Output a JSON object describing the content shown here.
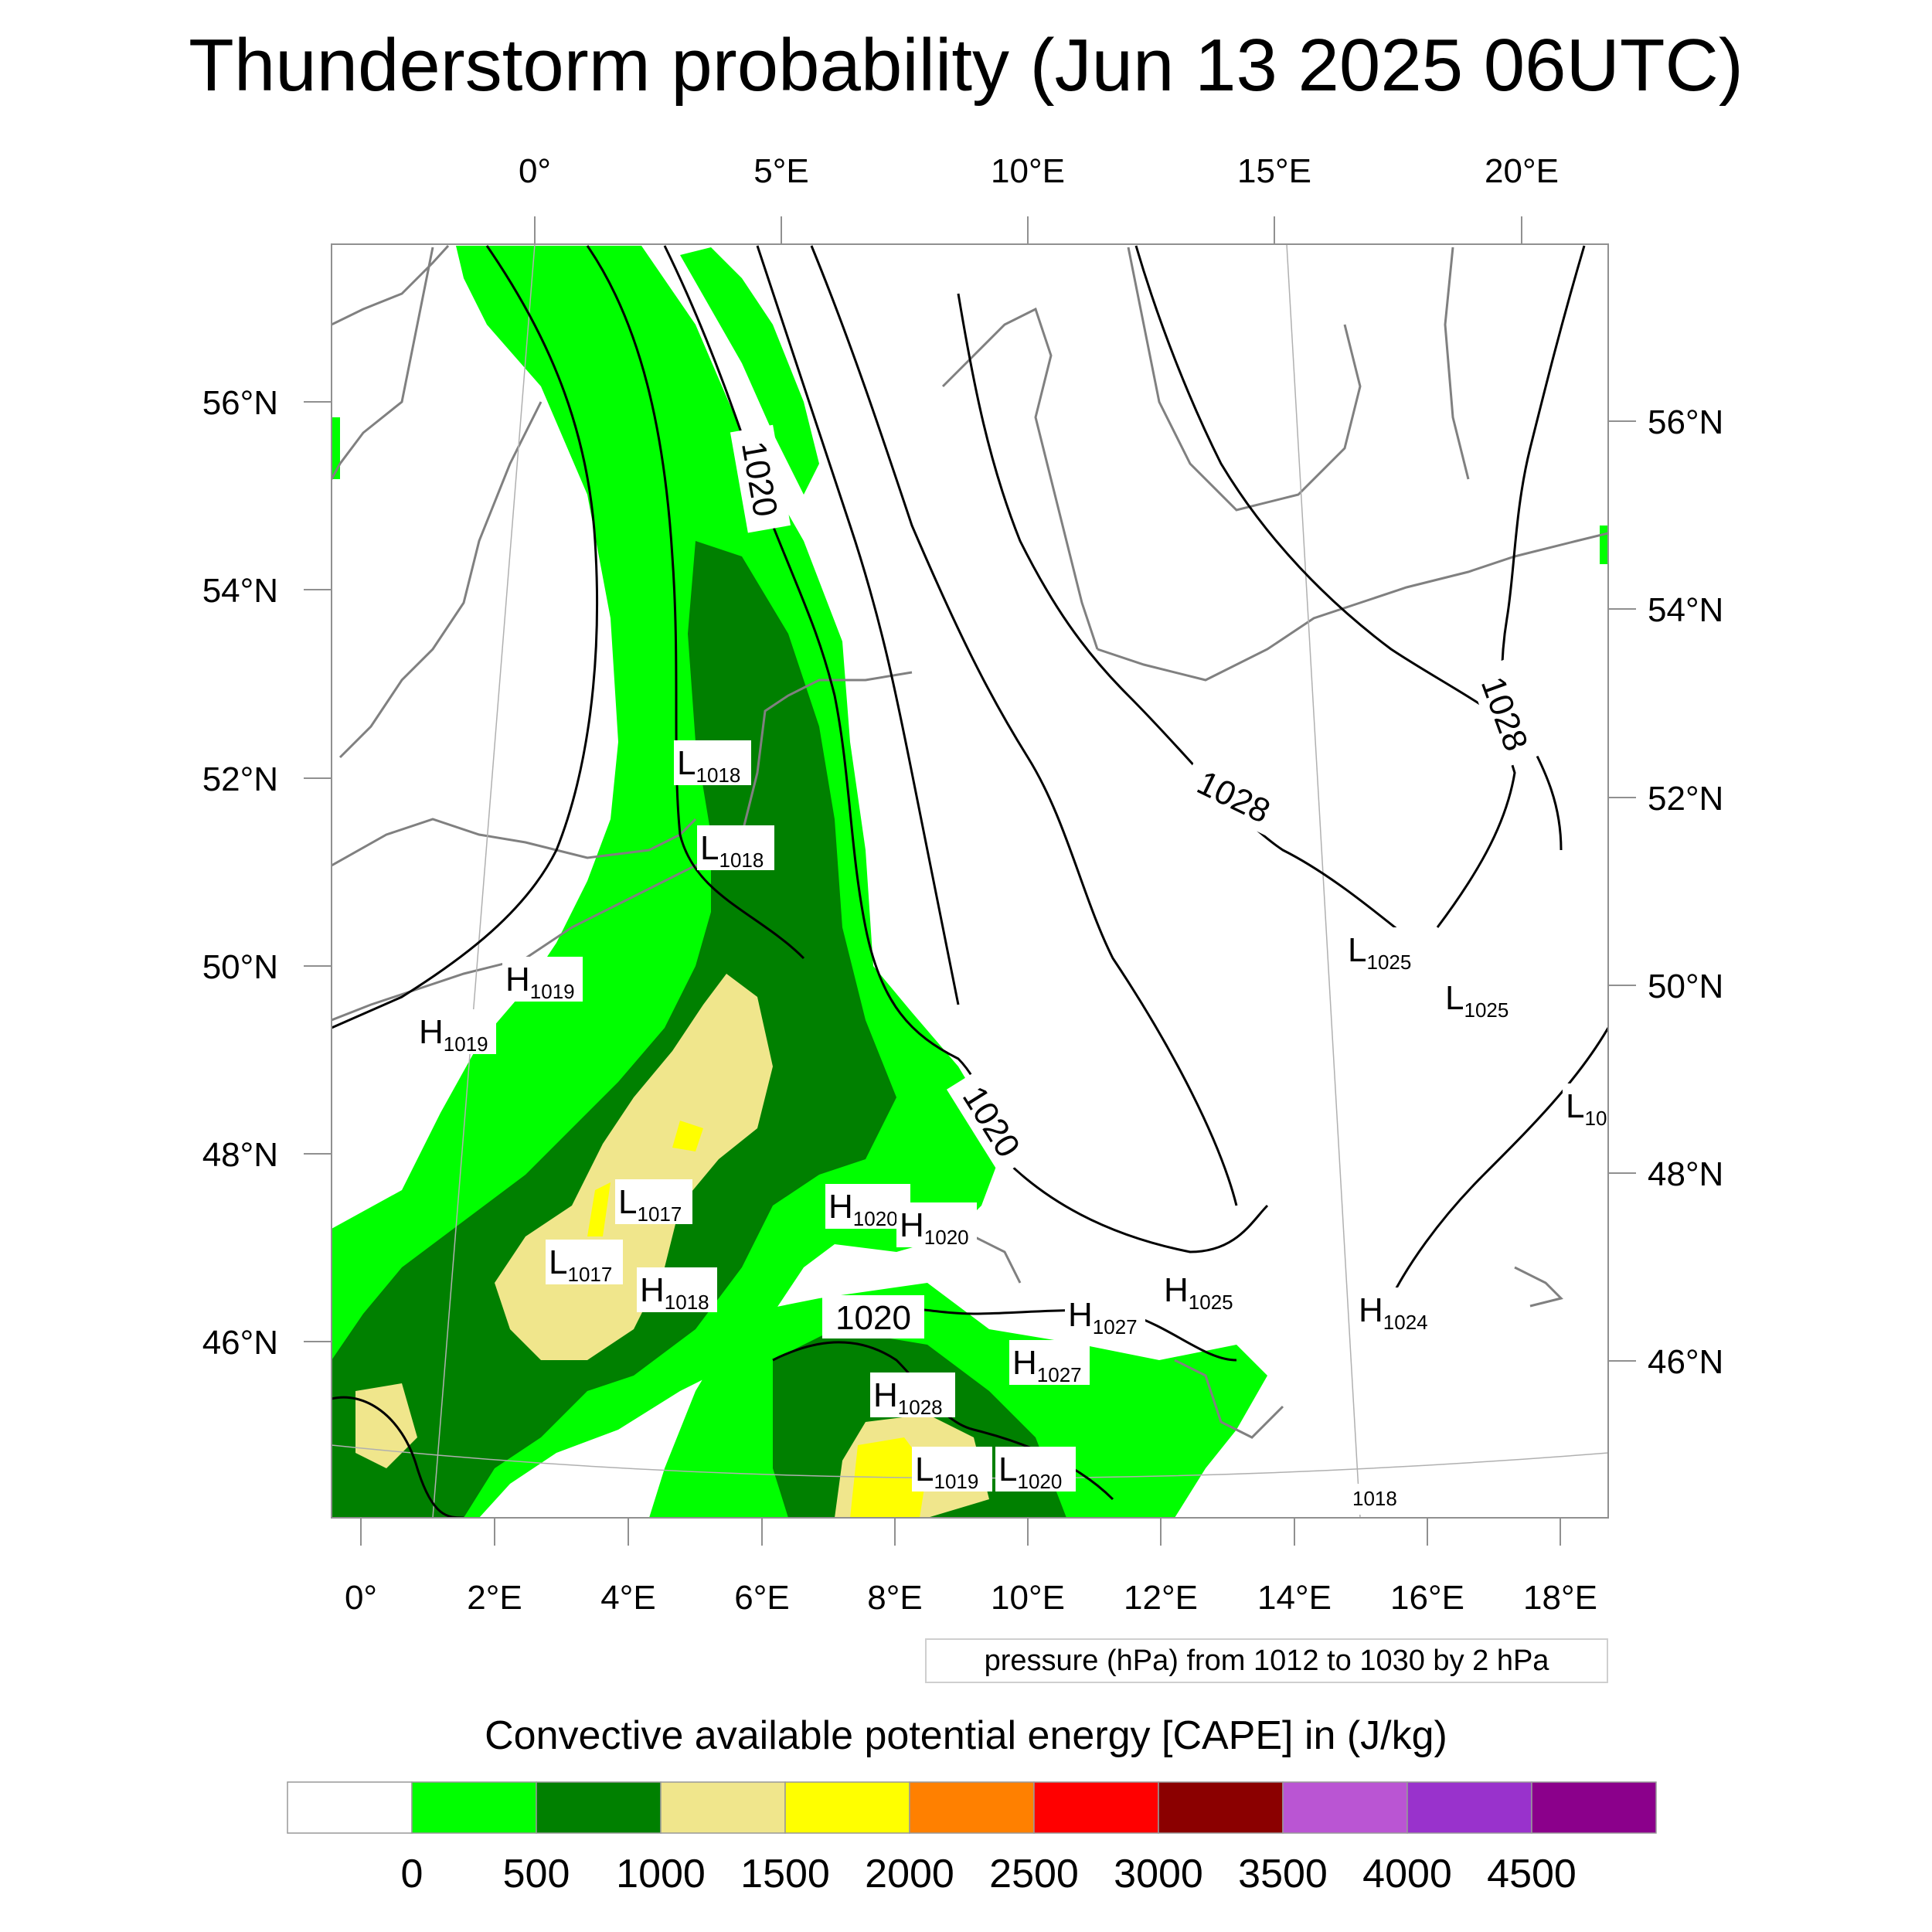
{
  "title": "Thunderstorm probability (Jun 13 2025 06UTC)",
  "map": {
    "top_lon_labels": [
      "0°",
      "5°E",
      "10°E",
      "15°E",
      "20°E"
    ],
    "bottom_lon_labels": [
      "0°",
      "2°E",
      "4°E",
      "6°E",
      "8°E",
      "10°E",
      "12°E",
      "14°E",
      "16°E",
      "18°E"
    ],
    "left_lat_labels": [
      "56°N",
      "54°N",
      "52°N",
      "50°N",
      "48°N",
      "46°N"
    ],
    "right_lat_labels": [
      "56°N",
      "54°N",
      "52°N",
      "50°N",
      "48°N",
      "46°N"
    ],
    "isobar_labels": [
      "1020",
      "1020",
      "1020",
      "1028",
      "1028"
    ],
    "pressure_centers": [
      {
        "letter": "L",
        "value": "1018"
      },
      {
        "letter": "L",
        "value": "1018"
      },
      {
        "letter": "H",
        "value": "1019"
      },
      {
        "letter": "H",
        "value": "1019"
      },
      {
        "letter": "L",
        "value": "1017"
      },
      {
        "letter": "L",
        "value": "1017"
      },
      {
        "letter": "H",
        "value": "1018"
      },
      {
        "letter": "H",
        "value": "1020"
      },
      {
        "letter": "H",
        "value": "1020"
      },
      {
        "letter": "L",
        "value": "1025"
      },
      {
        "letter": "L",
        "value": "1025"
      },
      {
        "letter": "L",
        "value": "10"
      },
      {
        "letter": "H",
        "value": "1025"
      },
      {
        "letter": "H",
        "value": "1027"
      },
      {
        "letter": "H",
        "value": "1027"
      },
      {
        "letter": "H",
        "value": "1024"
      },
      {
        "letter": "H",
        "value": "1028"
      },
      {
        "letter": "L",
        "value": "1019"
      },
      {
        "letter": "L",
        "value": "1020"
      },
      {
        "letter": "",
        "value": "1018"
      }
    ]
  },
  "pressure_note": "pressure (hPa) from 1012 to 1030 by 2 hPa",
  "colorbar": {
    "title": "Convective available potential energy [CAPE] in (J/kg)",
    "colors": [
      "#ffffff",
      "#00ff00",
      "#008000",
      "#f0e68c",
      "#ffff00",
      "#ff8000",
      "#ff0000",
      "#8b0000",
      "#ba55d3",
      "#9932cc",
      "#8b008b"
    ],
    "labels": [
      "0",
      "500",
      "1000",
      "1500",
      "2000",
      "2500",
      "3000",
      "3500",
      "4000",
      "4500"
    ]
  }
}
